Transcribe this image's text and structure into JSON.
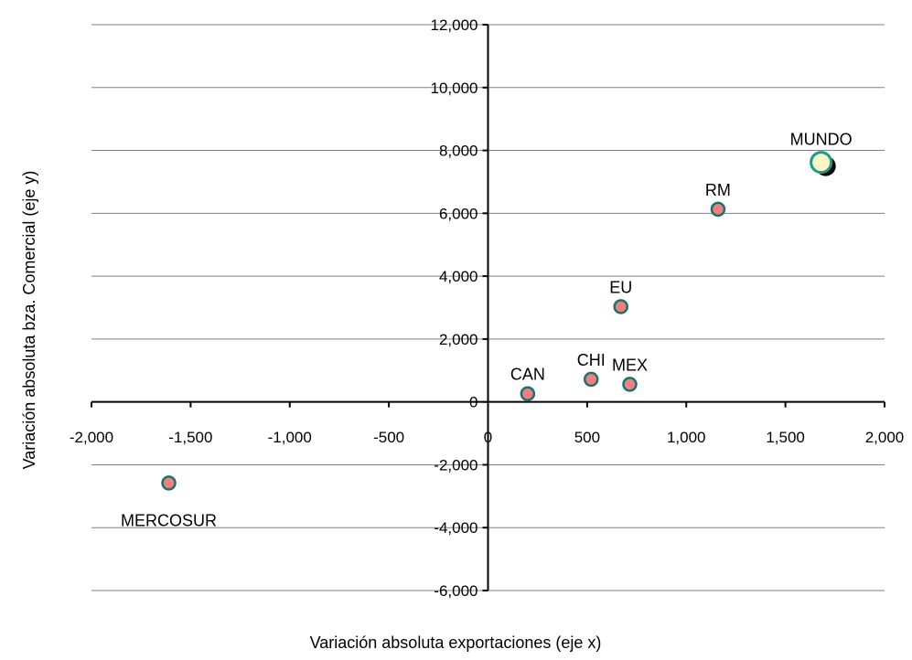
{
  "chart_data": {
    "type": "scatter",
    "title": "",
    "xlabel": "Variación absoluta exportaciones (eje x)",
    "ylabel": "Variación absoluta bza. Comercial (eje y)",
    "xlim": [
      -2000,
      2000
    ],
    "ylim": [
      -6000,
      12000
    ],
    "x_ticks": [
      -2000,
      -1500,
      -1000,
      -500,
      0,
      500,
      1000,
      1500,
      2000
    ],
    "x_tick_labels": [
      "-2,000",
      "-1,500",
      "-1,000",
      "-500",
      "0",
      "500",
      "1,000",
      "1,500",
      "2,000"
    ],
    "y_ticks": [
      -6000,
      -4000,
      -2000,
      0,
      2000,
      4000,
      6000,
      8000,
      10000,
      12000
    ],
    "y_tick_labels": [
      "-6,000",
      "-4,000",
      "-2,000",
      "0",
      "2,000",
      "4,000",
      "6,000",
      "8,000",
      "10,000",
      "12,000"
    ],
    "grid": "horizontal",
    "colors": {
      "point_fill": "#f08080",
      "point_stroke": "#1f6f6f",
      "highlight_fill": "#fbf8c8",
      "highlight_stroke": "#1a9a8a",
      "shadow": "#000000",
      "grid": "#808080"
    },
    "points": [
      {
        "label": "MERCOSUR",
        "x": -1610,
        "y": -2580,
        "label_pos": "below"
      },
      {
        "label": "CAN",
        "x": 200,
        "y": 260,
        "label_pos": "above"
      },
      {
        "label": "CHI",
        "x": 520,
        "y": 720,
        "label_pos": "above"
      },
      {
        "label": "MEX",
        "x": 715,
        "y": 560,
        "label_pos": "above"
      },
      {
        "label": "EU",
        "x": 670,
        "y": 3030,
        "label_pos": "above"
      },
      {
        "label": "RM",
        "x": 1160,
        "y": 6130,
        "label_pos": "above"
      },
      {
        "label": "MUNDO",
        "x": 1680,
        "y": 7620,
        "label_pos": "above",
        "highlight": true
      }
    ]
  }
}
